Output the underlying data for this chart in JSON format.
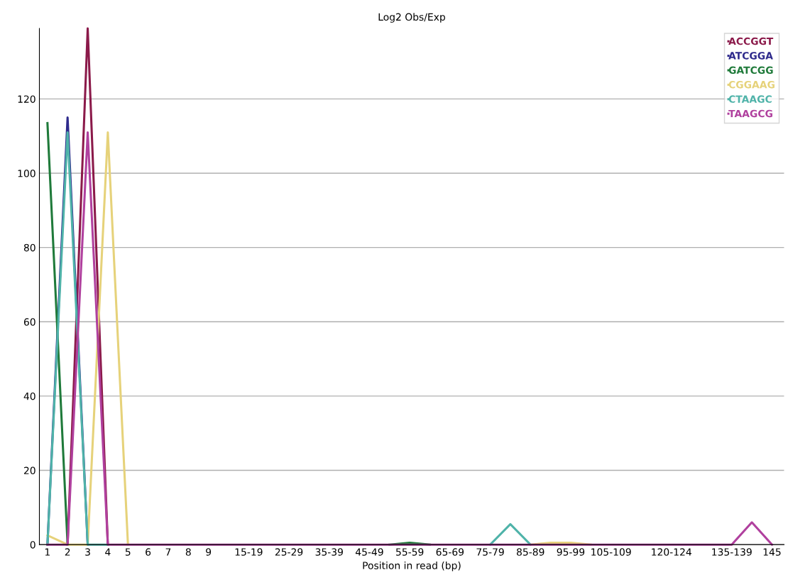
{
  "chart_data": {
    "type": "line",
    "title": "Log2 Obs/Exp",
    "xlabel": "Position in read (bp)",
    "categories": [
      "1",
      "2",
      "3",
      "4",
      "5",
      "6",
      "7",
      "8",
      "9",
      null,
      "15-19",
      null,
      "25-29",
      null,
      "35-39",
      null,
      "45-49",
      null,
      "55-59",
      null,
      "65-69",
      null,
      "75-79",
      null,
      "85-89",
      null,
      "95-99",
      null,
      "105-109",
      null,
      null,
      "120-124",
      null,
      null,
      "135-139",
      null,
      "145"
    ],
    "ylim": [
      0,
      139
    ],
    "yticks": [
      0,
      20,
      40,
      60,
      80,
      100,
      120
    ],
    "grid": "y",
    "legend": "top right",
    "marker": "none",
    "line_style": "solid",
    "series": [
      {
        "name": "ACCGGT",
        "color": "#8b1a4a",
        "values": [
          null,
          0,
          139,
          0,
          null,
          null,
          null,
          null,
          null,
          null,
          null,
          null,
          null,
          null,
          null,
          null,
          null,
          null,
          null,
          null,
          null,
          null,
          null,
          null,
          null,
          null,
          null,
          null,
          null,
          null,
          null,
          null,
          null,
          null,
          null,
          null,
          null
        ]
      },
      {
        "name": "ATCGGA",
        "color": "#2e2a8c",
        "values": [
          0,
          115,
          0,
          null,
          null,
          null,
          null,
          null,
          null,
          null,
          null,
          null,
          null,
          null,
          null,
          null,
          null,
          null,
          null,
          null,
          null,
          null,
          null,
          null,
          null,
          null,
          null,
          null,
          null,
          null,
          null,
          null,
          null,
          null,
          null,
          null,
          null
        ]
      },
      {
        "name": "GATCGG",
        "color": "#1f7a3a",
        "values": [
          113.5,
          0,
          null,
          null,
          null,
          null,
          null,
          null,
          null,
          null,
          null,
          null,
          null,
          null,
          null,
          null,
          null,
          0,
          0.5,
          0,
          null,
          null,
          null,
          null,
          null,
          null,
          null,
          null,
          null,
          null,
          null,
          null,
          null,
          null,
          null,
          null,
          null
        ]
      },
      {
        "name": "CGGAAG",
        "color": "#e6d27a",
        "values": [
          2.5,
          0,
          0,
          111,
          0,
          null,
          null,
          null,
          null,
          null,
          null,
          null,
          null,
          null,
          null,
          null,
          null,
          null,
          null,
          null,
          null,
          null,
          null,
          null,
          0,
          0.5,
          0.5,
          0,
          null,
          null,
          null,
          null,
          null,
          null,
          null,
          null,
          null
        ]
      },
      {
        "name": "CTAAGC",
        "color": "#4fb3a9",
        "values": [
          0,
          111,
          0,
          0,
          null,
          null,
          null,
          null,
          null,
          null,
          null,
          null,
          null,
          null,
          null,
          null,
          null,
          null,
          null,
          null,
          null,
          null,
          0,
          5.5,
          0,
          null,
          null,
          null,
          null,
          null,
          null,
          null,
          null,
          null,
          null,
          null,
          null
        ]
      },
      {
        "name": "TAAGCG",
        "color": "#b0409e",
        "values": [
          0,
          0,
          111,
          0,
          0,
          0,
          0,
          0,
          0,
          0,
          0,
          0,
          0,
          0,
          0,
          0,
          0,
          0,
          0,
          0,
          0,
          0,
          0,
          0,
          0,
          0,
          0,
          0,
          0,
          0,
          0,
          0,
          0,
          0,
          0,
          6,
          0
        ]
      }
    ]
  }
}
